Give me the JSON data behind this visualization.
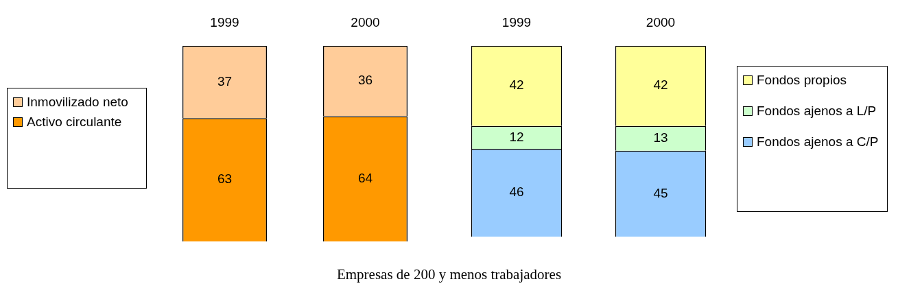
{
  "chart_data": [
    {
      "type": "bar",
      "stacked": true,
      "categories": [
        "1999",
        "2000"
      ],
      "ylim": [
        0,
        100
      ],
      "tick_labels": "x",
      "data_labels": true,
      "legend": "left",
      "annotations": [
        "Empresas de 200 y menos trabajadores"
      ],
      "series": [
        {
          "name": "Activo circulante",
          "color": "#ff9900",
          "values": [
            63,
            64
          ]
        },
        {
          "name": "Inmovilizado neto",
          "color": "#ffcc99",
          "values": [
            37,
            36
          ]
        }
      ]
    },
    {
      "type": "bar",
      "stacked": true,
      "categories": [
        "1999",
        "2000"
      ],
      "ylim": [
        0,
        100
      ],
      "tick_labels": "x",
      "data_labels": true,
      "legend": "right",
      "series": [
        {
          "name": "Fondos ajenos a C/P",
          "color": "#99ccff",
          "values": [
            46,
            45
          ]
        },
        {
          "name": "Fondos ajenos a L/P",
          "color": "#ccffcc",
          "values": [
            12,
            13
          ]
        },
        {
          "name": "Fondos propios",
          "color": "#ffff99",
          "values": [
            42,
            42
          ]
        }
      ]
    }
  ]
}
